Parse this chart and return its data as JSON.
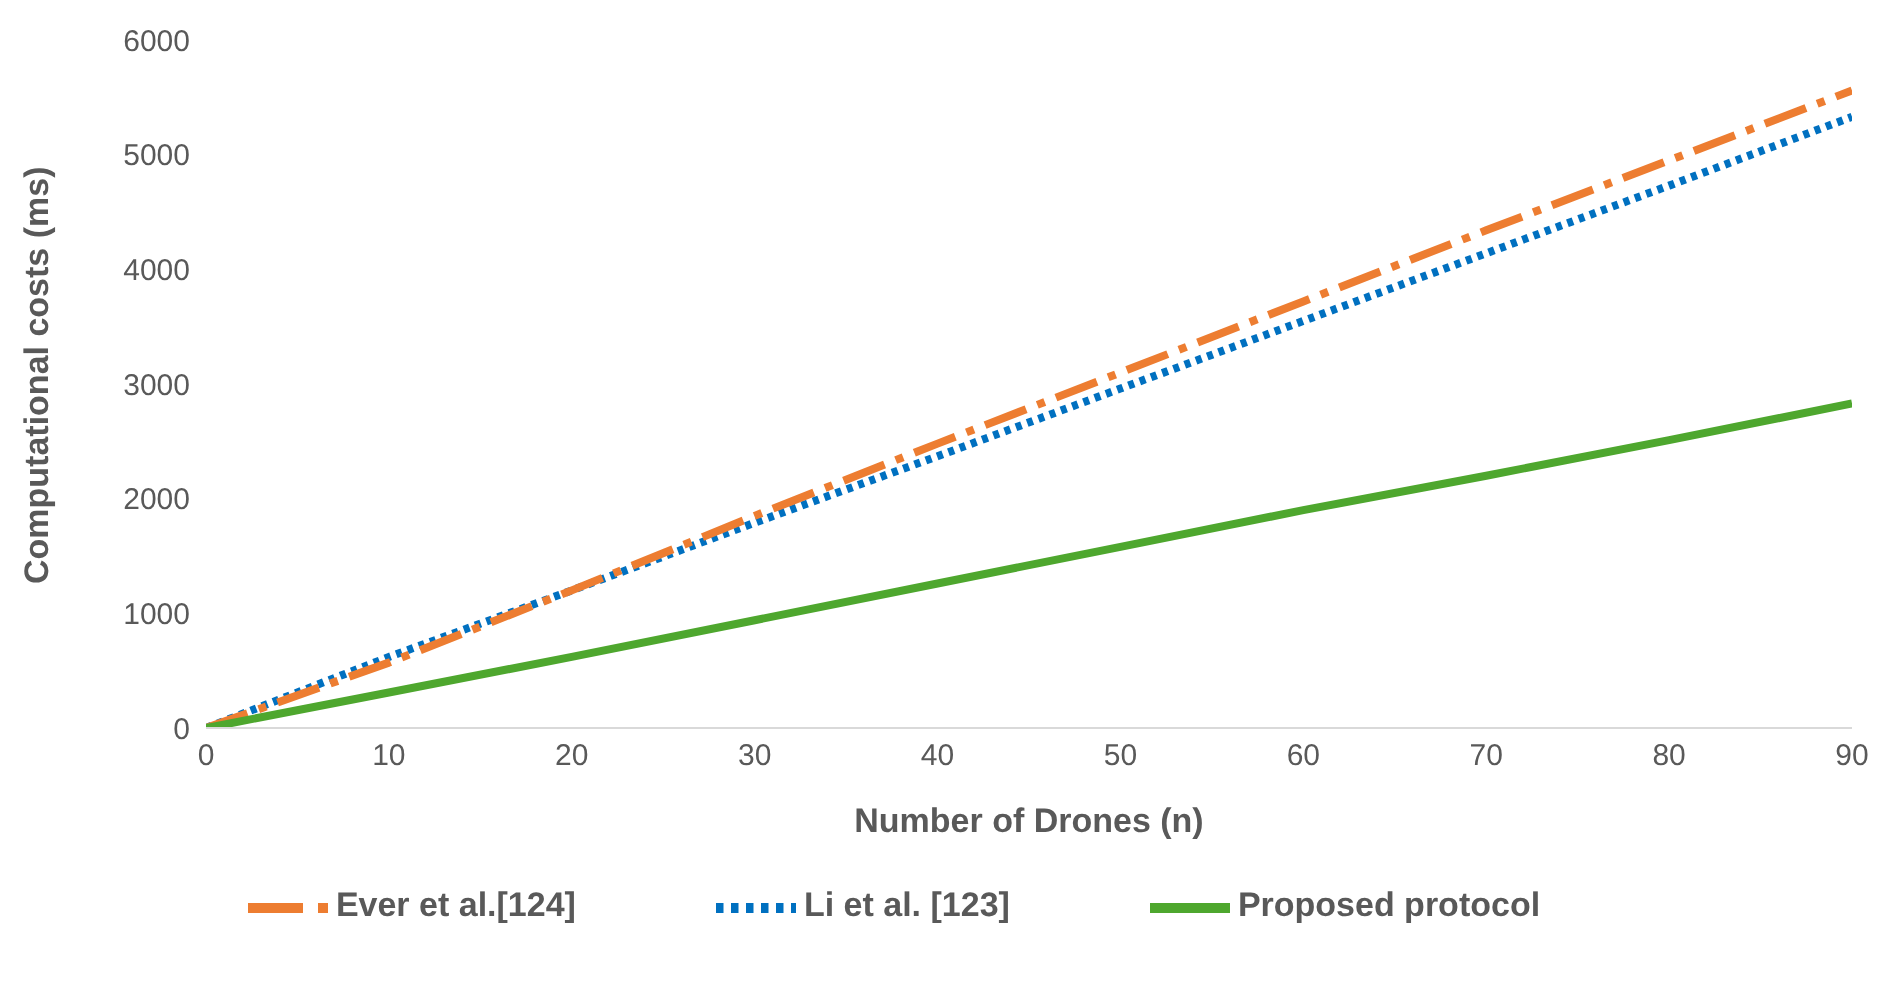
{
  "chart_data": {
    "type": "line",
    "xlabel": "Number of Drones (n)",
    "ylabel": "Computational costs (ms)",
    "x": [
      0,
      10,
      20,
      30,
      40,
      50,
      60,
      70,
      80,
      90
    ],
    "series": [
      {
        "name": "Li et al. [123]",
        "color": "#0070c0",
        "line_style": "dotted",
        "values": [
          0,
          620,
          1200,
          1790,
          2370,
          2960,
          3550,
          4140,
          4730,
          5330
        ]
      },
      {
        "name": "Ever et al.[124]",
        "color": "#ed7d31",
        "line_style": "dashed",
        "values": [
          0,
          570,
          1200,
          1850,
          2480,
          3100,
          3720,
          4340,
          4950,
          5560
        ]
      },
      {
        "name": "Proposed protocol",
        "color": "#4ea72e",
        "line_style": "solid",
        "values": [
          0,
          310,
          620,
          940,
          1260,
          1580,
          1900,
          2200,
          2510,
          2830
        ]
      }
    ],
    "xlim": [
      0,
      90
    ],
    "xticks": [
      0,
      10,
      20,
      30,
      40,
      50,
      60,
      70,
      80,
      90
    ],
    "ylim": [
      0,
      6000
    ],
    "yticks": [
      0,
      1000,
      2000,
      3000,
      4000,
      5000,
      6000
    ],
    "grid": false,
    "legend": "bottom",
    "marker": "none"
  }
}
